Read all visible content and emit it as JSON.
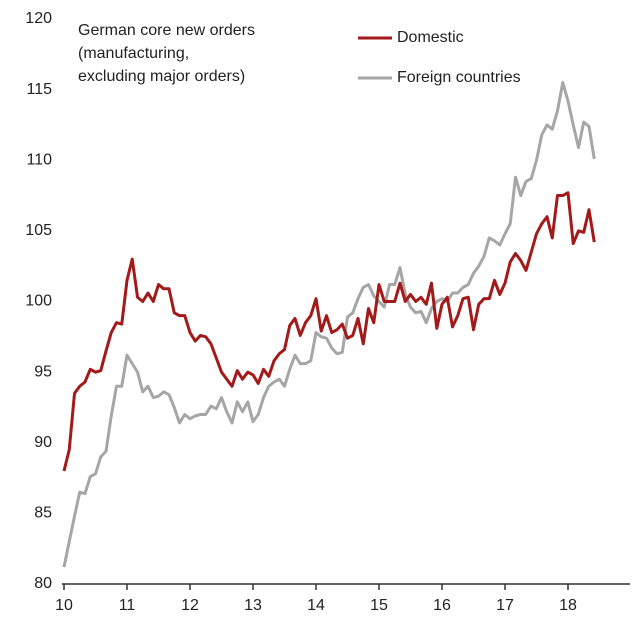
{
  "chart_data": {
    "type": "line",
    "title": [
      "German core new orders",
      "(manufacturing,",
      "excluding major orders)"
    ],
    "x": [
      10,
      10.083,
      10.167,
      10.25,
      10.333,
      10.417,
      10.5,
      10.583,
      10.667,
      10.75,
      10.833,
      10.917,
      11,
      11.083,
      11.167,
      11.25,
      11.333,
      11.417,
      11.5,
      11.583,
      11.667,
      11.75,
      11.833,
      11.917,
      12,
      12.083,
      12.167,
      12.25,
      12.333,
      12.417,
      12.5,
      12.583,
      12.667,
      12.75,
      12.833,
      12.917,
      13,
      13.083,
      13.167,
      13.25,
      13.333,
      13.417,
      13.5,
      13.583,
      13.667,
      13.75,
      13.833,
      13.917,
      14,
      14.083,
      14.167,
      14.25,
      14.333,
      14.417,
      14.5,
      14.583,
      14.667,
      14.75,
      14.833,
      14.917,
      15,
      15.083,
      15.167,
      15.25,
      15.333,
      15.417,
      15.5,
      15.583,
      15.667,
      15.75,
      15.833,
      15.917,
      16,
      16.083,
      16.167,
      16.25,
      16.333,
      16.417,
      16.5,
      16.583,
      16.667,
      16.75,
      16.833,
      16.917,
      17,
      17.083,
      17.167,
      17.25,
      17.333,
      17.417,
      17.5,
      17.583,
      17.667,
      17.75,
      17.833,
      17.917,
      18,
      18.083,
      18.167,
      18.25,
      18.333,
      18.417
    ],
    "series": [
      {
        "name": "Domestic",
        "color": "#a31a1a",
        "values": [
          88,
          89.5,
          93.5,
          94,
          94.3,
          95.2,
          95,
          95.1,
          96.5,
          97.8,
          98.5,
          98.4,
          101.5,
          103,
          100.3,
          100,
          100.6,
          100,
          101.2,
          100.9,
          100.9,
          99.2,
          99,
          99,
          97.8,
          97.2,
          97.6,
          97.5,
          97,
          96,
          95,
          94.5,
          94,
          95.1,
          94.5,
          95,
          94.8,
          94.2,
          95.2,
          94.7,
          95.8,
          96.3,
          96.6,
          98.3,
          98.8,
          97.6,
          98.5,
          99,
          100.2,
          97.9,
          99,
          97.8,
          98,
          98.4,
          97.4,
          97.6,
          98.8,
          97,
          99.5,
          98.5,
          101.2,
          100,
          100,
          100,
          101.3,
          100,
          100.5,
          100,
          100.3,
          99.8,
          101.3,
          98.1,
          99.8,
          100.3,
          98.2,
          99,
          100.2,
          100.3,
          98,
          99.8,
          100.2,
          100.2,
          101.5,
          100.5,
          101.3,
          102.8,
          103.4,
          102.9,
          102.2,
          103.5,
          104.8,
          105.5,
          106,
          104.5,
          107.5,
          107.5,
          107.7,
          104.1,
          105,
          104.9,
          106.5,
          104.2
        ]
      },
      {
        "name": "Foreign countries",
        "color": "#a6a6a6",
        "values": [
          81.2,
          83,
          84.8,
          86.5,
          86.4,
          87.6,
          87.8,
          89,
          89.4,
          91.9,
          94,
          94,
          96.2,
          95.6,
          95,
          93.6,
          94,
          93.2,
          93.3,
          93.6,
          93.4,
          92.5,
          91.4,
          92,
          91.7,
          91.9,
          92,
          92,
          92.6,
          92.4,
          93.2,
          92.2,
          91.4,
          92.9,
          92.2,
          92.9,
          91.5,
          92,
          93.2,
          94,
          94.3,
          94.5,
          94,
          95.2,
          96.2,
          95.6,
          95.6,
          95.8,
          97.8,
          97.5,
          97.4,
          96.7,
          96.3,
          96.4,
          98.9,
          99.2,
          100.2,
          101,
          101.2,
          100.4,
          100,
          99.6,
          101.2,
          101.2,
          102.4,
          100.5,
          99.6,
          99.2,
          99.3,
          98.5,
          99.5,
          100,
          100.2,
          100,
          100.6,
          100.6,
          101,
          101.2,
          102,
          102.5,
          103.2,
          104.5,
          104.3,
          104,
          104.8,
          105.5,
          108.8,
          107.5,
          108.5,
          108.7,
          110,
          111.8,
          112.5,
          112.2,
          113.5,
          115.5,
          114.2,
          112.5,
          110.9,
          112.7,
          112.4,
          110.1
        ]
      }
    ],
    "xlim": [
      10,
      19
    ],
    "xticks": [
      10,
      11,
      12,
      13,
      14,
      15,
      16,
      17,
      18
    ],
    "ylim": [
      80,
      120
    ],
    "yticks": [
      80,
      85,
      90,
      95,
      100,
      105,
      110,
      115,
      120
    ],
    "grid": false
  }
}
